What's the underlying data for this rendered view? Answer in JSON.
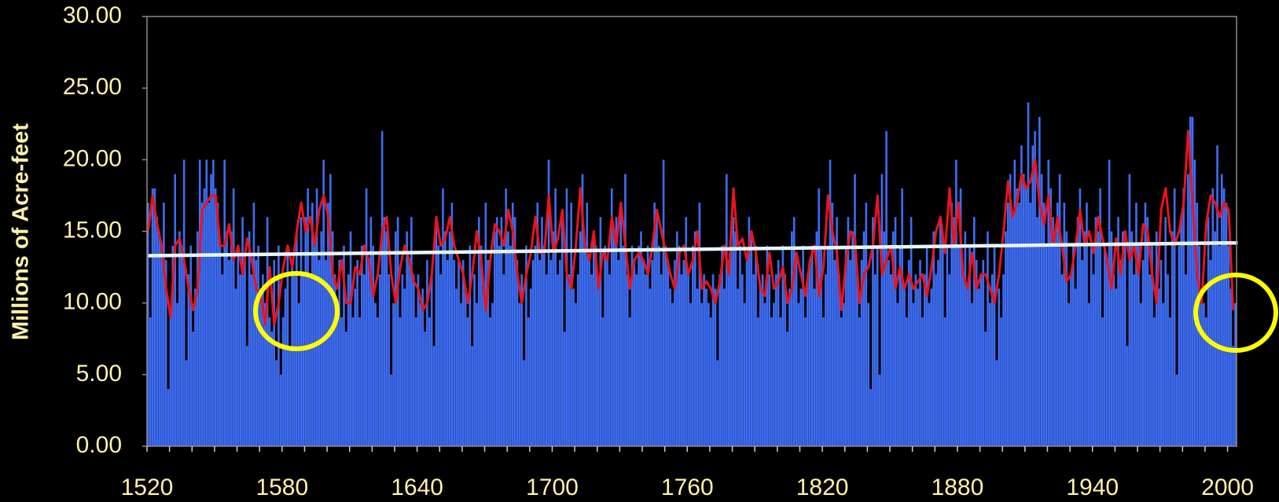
{
  "chart_data": {
    "type": "bar",
    "ylabel": "Millions of Acre-feet",
    "xlim": [
      1520,
      2004
    ],
    "ylim": [
      0,
      30
    ],
    "xticks": [
      1520,
      1580,
      1640,
      1700,
      1760,
      1820,
      1880,
      1940,
      2000
    ],
    "xticks_minor": [
      1520,
      1530,
      1540,
      1550,
      1560,
      1570,
      1580,
      1590,
      1600,
      1610,
      1620,
      1630,
      1640,
      1650,
      1660,
      1670,
      1680,
      1690,
      1700,
      1710,
      1720,
      1730,
      1740,
      1750,
      1760,
      1770,
      1780,
      1790,
      1800,
      1810,
      1820,
      1830,
      1840,
      1850,
      1860,
      1870,
      1880,
      1890,
      1900,
      1910,
      1920,
      1930,
      1940,
      1950,
      1960,
      1970,
      1980,
      1990,
      2000
    ],
    "yticks": [
      {
        "value": 0,
        "label": "0.00"
      },
      {
        "value": 5,
        "label": "5.00"
      },
      {
        "value": 10,
        "label": "10.00"
      },
      {
        "value": 15,
        "label": "15.00"
      },
      {
        "value": 20,
        "label": "20.00"
      },
      {
        "value": 25,
        "label": "25.00"
      },
      {
        "value": 30,
        "label": "30.00"
      }
    ],
    "color": "#3d6cf2",
    "x": [
      1520,
      1521,
      1522,
      1523,
      1524,
      1525,
      1526,
      1527,
      1528,
      1529,
      1530,
      1531,
      1532,
      1533,
      1534,
      1535,
      1536,
      1537,
      1538,
      1539,
      1540,
      1541,
      1542,
      1543,
      1544,
      1545,
      1546,
      1547,
      1548,
      1549,
      1550,
      1551,
      1552,
      1553,
      1554,
      1555,
      1556,
      1557,
      1558,
      1559,
      1560,
      1561,
      1562,
      1563,
      1564,
      1565,
      1566,
      1567,
      1568,
      1569,
      1570,
      1571,
      1572,
      1573,
      1574,
      1575,
      1576,
      1577,
      1578,
      1579,
      1580,
      1581,
      1582,
      1583,
      1584,
      1585,
      1586,
      1587,
      1588,
      1589,
      1590,
      1591,
      1592,
      1593,
      1594,
      1595,
      1596,
      1597,
      1598,
      1599,
      1600,
      1601,
      1602,
      1603,
      1604,
      1605,
      1606,
      1607,
      1608,
      1609,
      1610,
      1611,
      1612,
      1613,
      1614,
      1615,
      1616,
      1617,
      1618,
      1619,
      1620,
      1621,
      1622,
      1623,
      1624,
      1625,
      1626,
      1627,
      1628,
      1629,
      1630,
      1631,
      1632,
      1633,
      1634,
      1635,
      1636,
      1637,
      1638,
      1639,
      1640,
      1641,
      1642,
      1643,
      1644,
      1645,
      1646,
      1647,
      1648,
      1649,
      1650,
      1651,
      1652,
      1653,
      1654,
      1655,
      1656,
      1657,
      1658,
      1659,
      1660,
      1661,
      1662,
      1663,
      1664,
      1665,
      1666,
      1667,
      1668,
      1669,
      1670,
      1671,
      1672,
      1673,
      1674,
      1675,
      1676,
      1677,
      1678,
      1679,
      1680,
      1681,
      1682,
      1683,
      1684,
      1685,
      1686,
      1687,
      1688,
      1689,
      1690,
      1691,
      1692,
      1693,
      1694,
      1695,
      1696,
      1697,
      1698,
      1699,
      1700,
      1701,
      1702,
      1703,
      1704,
      1705,
      1706,
      1707,
      1708,
      1709,
      1710,
      1711,
      1712,
      1713,
      1714,
      1715,
      1716,
      1717,
      1718,
      1719,
      1720,
      1721,
      1722,
      1723,
      1724,
      1725,
      1726,
      1727,
      1728,
      1729,
      1730,
      1731,
      1732,
      1733,
      1734,
      1735,
      1736,
      1737,
      1738,
      1739,
      1740,
      1741,
      1742,
      1743,
      1744,
      1745,
      1746,
      1747,
      1748,
      1749,
      1750,
      1751,
      1752,
      1753,
      1754,
      1755,
      1756,
      1757,
      1758,
      1759,
      1760,
      1761,
      1762,
      1763,
      1764,
      1765,
      1766,
      1767,
      1768,
      1769,
      1770,
      1771,
      1772,
      1773,
      1774,
      1775,
      1776,
      1777,
      1778,
      1779,
      1780,
      1781,
      1782,
      1783,
      1784,
      1785,
      1786,
      1787,
      1788,
      1789,
      1790,
      1791,
      1792,
      1793,
      1794,
      1795,
      1796,
      1797,
      1798,
      1799,
      1800,
      1801,
      1802,
      1803,
      1804,
      1805,
      1806,
      1807,
      1808,
      1809,
      1810,
      1811,
      1812,
      1813,
      1814,
      1815,
      1816,
      1817,
      1818,
      1819,
      1820,
      1821,
      1822,
      1823,
      1824,
      1825,
      1826,
      1827,
      1828,
      1829,
      1830,
      1831,
      1832,
      1833,
      1834,
      1835,
      1836,
      1837,
      1838,
      1839,
      1840,
      1841,
      1842,
      1843,
      1844,
      1845,
      1846,
      1847,
      1848,
      1849,
      1850,
      1851,
      1852,
      1853,
      1854,
      1855,
      1856,
      1857,
      1858,
      1859,
      1860,
      1861,
      1862,
      1863,
      1864,
      1865,
      1866,
      1867,
      1868,
      1869,
      1870,
      1871,
      1872,
      1873,
      1874,
      1875,
      1876,
      1877,
      1878,
      1879,
      1880,
      1881,
      1882,
      1883,
      1884,
      1885,
      1886,
      1887,
      1888,
      1889,
      1890,
      1891,
      1892,
      1893,
      1894,
      1895,
      1896,
      1897,
      1898,
      1899,
      1900,
      1901,
      1902,
      1903,
      1904,
      1905,
      1906,
      1907,
      1908,
      1909,
      1910,
      1911,
      1912,
      1913,
      1914,
      1915,
      1916,
      1917,
      1918,
      1919,
      1920,
      1921,
      1922,
      1923,
      1924,
      1925,
      1926,
      1927,
      1928,
      1929,
      1930,
      1931,
      1932,
      1933,
      1934,
      1935,
      1936,
      1937,
      1938,
      1939,
      1940,
      1941,
      1942,
      1943,
      1944,
      1945,
      1946,
      1947,
      1948,
      1949,
      1950,
      1951,
      1952,
      1953,
      1954,
      1955,
      1956,
      1957,
      1958,
      1959,
      1960,
      1961,
      1962,
      1963,
      1964,
      1965,
      1966,
      1967,
      1968,
      1969,
      1970,
      1971,
      1972,
      1973,
      1974,
      1975,
      1976,
      1977,
      1978,
      1979,
      1980,
      1981,
      1982,
      1983,
      1984,
      1985,
      1986,
      1987,
      1988,
      1989,
      1990,
      1991,
      1992,
      1993,
      1994,
      1995,
      1996,
      1997,
      1998,
      1999,
      2000,
      2001,
      2002,
      2003
    ],
    "values": [
      17,
      9,
      18,
      18,
      16,
      15,
      14,
      17,
      13,
      4,
      9,
      14,
      19,
      10,
      15,
      14,
      20,
      6,
      12,
      14,
      8,
      11,
      15,
      20,
      17,
      18,
      20,
      17,
      19,
      20,
      18,
      17,
      14,
      12,
      20,
      15,
      13,
      15,
      18,
      11,
      14,
      12,
      16,
      13,
      7,
      15,
      12,
      17,
      13,
      14,
      11,
      12,
      10,
      16,
      9,
      8,
      13,
      6,
      14,
      5,
      9,
      11,
      14,
      7,
      13,
      12,
      15,
      10,
      16,
      12,
      16,
      18,
      12,
      17,
      14,
      18,
      13,
      15,
      20,
      13,
      17,
      19,
      15,
      12,
      10,
      13,
      9,
      14,
      8,
      12,
      15,
      9,
      11,
      13,
      9,
      14,
      12,
      18,
      13,
      16,
      14,
      10,
      9,
      12,
      22,
      16,
      15,
      12,
      5,
      10,
      15,
      16,
      9,
      12,
      11,
      15,
      13,
      16,
      12,
      9,
      12,
      10,
      11,
      8,
      13,
      9,
      12,
      7,
      16,
      14,
      12,
      18,
      15,
      13,
      15,
      17,
      13,
      11,
      13,
      10,
      13,
      11,
      9,
      14,
      7,
      12,
      10,
      16,
      14,
      11,
      17,
      13,
      9,
      10,
      15,
      16,
      14,
      16,
      12,
      18,
      15,
      14,
      17,
      16,
      13,
      10,
      12,
      6,
      14,
      9,
      11,
      13,
      14,
      17,
      13,
      16,
      14,
      12,
      20,
      13,
      15,
      18,
      12,
      13,
      16,
      8,
      18,
      12,
      17,
      11,
      10,
      12,
      15,
      19,
      14,
      17,
      13,
      12,
      15,
      14,
      11,
      16,
      9,
      14,
      13,
      12,
      18,
      15,
      16,
      13,
      17,
      14,
      19,
      12,
      9,
      14,
      13,
      12,
      14,
      15,
      13,
      12,
      14,
      11,
      13,
      17,
      16,
      14,
      12,
      20,
      14,
      13,
      11,
      10,
      13,
      15,
      14,
      12,
      13,
      16,
      12,
      10,
      14,
      15,
      11,
      17,
      10,
      12,
      11,
      10,
      9,
      12,
      11,
      6,
      12,
      14,
      11,
      19,
      13,
      14,
      16,
      15,
      11,
      14,
      12,
      10,
      13,
      16,
      15,
      12,
      14,
      9,
      11,
      12,
      10,
      14,
      12,
      9,
      10,
      12,
      13,
      9,
      14,
      12,
      8,
      11,
      15,
      16,
      13,
      10,
      11,
      14,
      9,
      12,
      13,
      14,
      11,
      15,
      18,
      14,
      9,
      12,
      14,
      20,
      17,
      13,
      16,
      12,
      9,
      10,
      14,
      16,
      13,
      15,
      19,
      12,
      9,
      13,
      15,
      17,
      10,
      4,
      16,
      12,
      14,
      5,
      19,
      15,
      22,
      13,
      12,
      15,
      16,
      10,
      14,
      18,
      11,
      9,
      13,
      16,
      10,
      12,
      11,
      13,
      9,
      12,
      14,
      10,
      11,
      15,
      12,
      13,
      16,
      15,
      9,
      14,
      12,
      17,
      16,
      20,
      14,
      18,
      12,
      15,
      11,
      14,
      10,
      16,
      13,
      11,
      12,
      13,
      8,
      15,
      10,
      12,
      14,
      6,
      11,
      9,
      12,
      15,
      17,
      19,
      16,
      20,
      18,
      17,
      21,
      19,
      18,
      24,
      17,
      21,
      22,
      16,
      23,
      19,
      17,
      14,
      20,
      18,
      16,
      15,
      17,
      19,
      12,
      17,
      15,
      10,
      12,
      14,
      11,
      16,
      18,
      13,
      15,
      17,
      10,
      14,
      12,
      16,
      15,
      18,
      9,
      14,
      13,
      20,
      15,
      12,
      11,
      16,
      13,
      15,
      14,
      7,
      19,
      15,
      12,
      17,
      14,
      10,
      13,
      17,
      16,
      12,
      14,
      9,
      15,
      11,
      13,
      10,
      16,
      12,
      9,
      15,
      18,
      5,
      14,
      16,
      18,
      12,
      19,
      23,
      23,
      20,
      17,
      14,
      11,
      10,
      9,
      16,
      13,
      18,
      15,
      21,
      14,
      19,
      18,
      17,
      14,
      11,
      7,
      10
    ],
    "lines": [
      {
        "color": "#e8141e",
        "x": [
          1520,
          1522,
          1524,
          1526,
          1528,
          1530,
          1532,
          1534,
          1536,
          1538,
          1540,
          1542,
          1544,
          1546,
          1548,
          1550,
          1552,
          1554,
          1556,
          1558,
          1560,
          1562,
          1564,
          1566,
          1568,
          1570,
          1572,
          1574,
          1576,
          1578,
          1580,
          1582,
          1584,
          1586,
          1588,
          1590,
          1592,
          1594,
          1596,
          1598,
          1600,
          1602,
          1604,
          1606,
          1608,
          1610,
          1612,
          1614,
          1616,
          1618,
          1620,
          1622,
          1624,
          1626,
          1628,
          1630,
          1632,
          1634,
          1636,
          1638,
          1640,
          1642,
          1644,
          1646,
          1648,
          1650,
          1652,
          1654,
          1656,
          1658,
          1660,
          1662,
          1664,
          1666,
          1668,
          1670,
          1672,
          1674,
          1676,
          1678,
          1680,
          1682,
          1684,
          1686,
          1688,
          1690,
          1692,
          1694,
          1696,
          1698,
          1700,
          1702,
          1704,
          1706,
          1708,
          1710,
          1712,
          1714,
          1716,
          1718,
          1720,
          1722,
          1724,
          1726,
          1728,
          1730,
          1732,
          1734,
          1736,
          1738,
          1740,
          1742,
          1744,
          1746,
          1748,
          1750,
          1752,
          1754,
          1756,
          1758,
          1760,
          1762,
          1764,
          1766,
          1768,
          1770,
          1772,
          1774,
          1776,
          1778,
          1780,
          1782,
          1784,
          1786,
          1788,
          1790,
          1792,
          1794,
          1796,
          1798,
          1800,
          1802,
          1804,
          1806,
          1808,
          1810,
          1812,
          1814,
          1816,
          1818,
          1820,
          1822,
          1824,
          1826,
          1828,
          1830,
          1832,
          1834,
          1836,
          1838,
          1840,
          1842,
          1844,
          1846,
          1848,
          1850,
          1852,
          1854,
          1856,
          1858,
          1860,
          1862,
          1864,
          1866,
          1868,
          1870,
          1872,
          1874,
          1876,
          1878,
          1880,
          1882,
          1884,
          1886,
          1888,
          1890,
          1892,
          1894,
          1896,
          1898,
          1900,
          1902,
          1904,
          1906,
          1908,
          1910,
          1912,
          1914,
          1916,
          1918,
          1920,
          1922,
          1924,
          1926,
          1928,
          1930,
          1932,
          1934,
          1936,
          1938,
          1940,
          1942,
          1944,
          1946,
          1948,
          1950,
          1952,
          1954,
          1956,
          1958,
          1960,
          1962,
          1964,
          1966,
          1968,
          1970,
          1972,
          1974,
          1976,
          1978,
          1980,
          1982,
          1984,
          1986,
          1988,
          1990,
          1992,
          1994,
          1996,
          1998,
          2000,
          2002
        ],
        "values": [
          15,
          17.5,
          15.5,
          14,
          11,
          9,
          14,
          14.5,
          13,
          11,
          9.5,
          11,
          16.5,
          17,
          17.5,
          17.5,
          14,
          14,
          15.5,
          13,
          14,
          12,
          14.5,
          13,
          11,
          10.5,
          8.5,
          12.5,
          8.5,
          10,
          12.5,
          14,
          12.5,
          15,
          17,
          15,
          16,
          14,
          16.5,
          17.5,
          16,
          12,
          11,
          13,
          10,
          10,
          12.5,
          12,
          14,
          13,
          10.5,
          12,
          15,
          16,
          12,
          10,
          12.5,
          14,
          13,
          11.5,
          11,
          9.5,
          10,
          12,
          16,
          14,
          14.5,
          16,
          14,
          13,
          12,
          10,
          12,
          15,
          13,
          9.5,
          13,
          15.5,
          15,
          14,
          16.5,
          15,
          12,
          10,
          12,
          13.5,
          16,
          13.5,
          13.5,
          17.5,
          13.5,
          14.5,
          16.5,
          12,
          11,
          14,
          18,
          14,
          13,
          15,
          11,
          13.5,
          13,
          16,
          14,
          17,
          14,
          11,
          13,
          13.5,
          13,
          12,
          14,
          16.5,
          15,
          13.5,
          12,
          11,
          13.5,
          14,
          12,
          13,
          15,
          11,
          11.5,
          11,
          10,
          11.5,
          14,
          12,
          18,
          14,
          14.5,
          13,
          15,
          13.5,
          11,
          10.5,
          13.5,
          11,
          11.5,
          12.5,
          10,
          11,
          13.5,
          12,
          10.5,
          13,
          14,
          10.5,
          12.5,
          17.5,
          15,
          13.5,
          9.5,
          13,
          15,
          14.5,
          10,
          12,
          12.5,
          14,
          17.5,
          12,
          13,
          14,
          11,
          12.5,
          11,
          12,
          11,
          11.5,
          12,
          10.5,
          12.5,
          15,
          16,
          13.5,
          18,
          14,
          17,
          12,
          11,
          13.5,
          11,
          12,
          12,
          11,
          10,
          12,
          15,
          18.5,
          16,
          17,
          19,
          18,
          18.5,
          20,
          17,
          15.5,
          17.5,
          14,
          16,
          14,
          11.5,
          12,
          14,
          16.5,
          14,
          15,
          13.5,
          16,
          14.5,
          13,
          11,
          14.5,
          12,
          15,
          13,
          14,
          12,
          15.5,
          15,
          12,
          10,
          16.5,
          18,
          15,
          14,
          15,
          17,
          22,
          17,
          12,
          10,
          15.5,
          17.5,
          17,
          16,
          17,
          16.5,
          9.5
        ]
      },
      {
        "color": "#e6f7ff",
        "x": [
          1520,
          2004
        ],
        "values": [
          13.3,
          14.2
        ]
      }
    ]
  }
}
